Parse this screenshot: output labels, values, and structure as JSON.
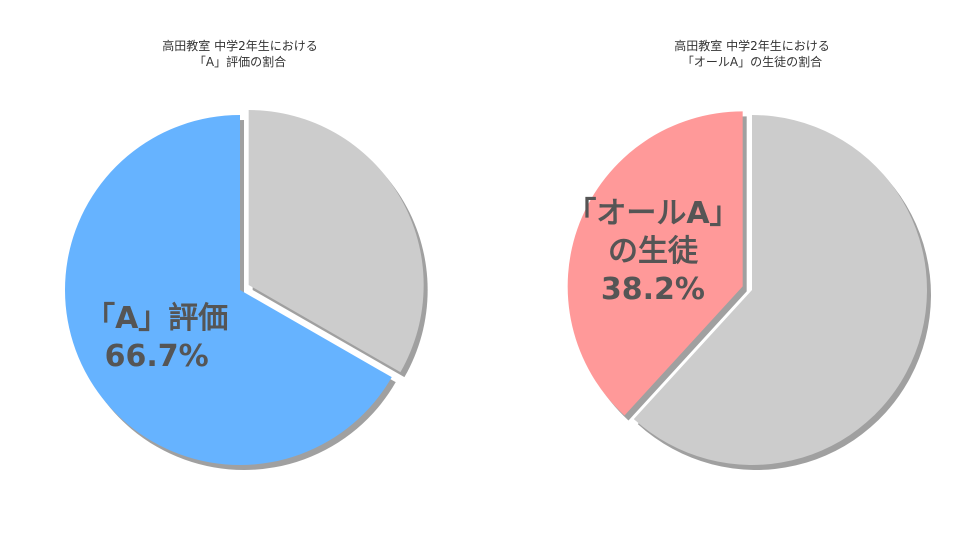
{
  "chart_data": [
    {
      "type": "pie",
      "title": "高田教室 中学2年生における\n「A」評価の割合",
      "categories": [
        "「A」評価",
        null
      ],
      "values": [
        66.7,
        33.3
      ],
      "value_labels": [
        "66.7%",
        null
      ],
      "colors": [
        "#66b3ff",
        "#cccccc"
      ],
      "exploded": 1
    },
    {
      "type": "pie",
      "title": "高田教室 中学2年生における\n「オールA」の生徒の割合",
      "categories": [
        "「オールA」\nの生徒",
        null
      ],
      "values": [
        38.2,
        61.8
      ],
      "value_labels": [
        "38.2%",
        null
      ],
      "colors": [
        "#ff9999",
        "#cccccc"
      ],
      "exploded": 0
    }
  ]
}
